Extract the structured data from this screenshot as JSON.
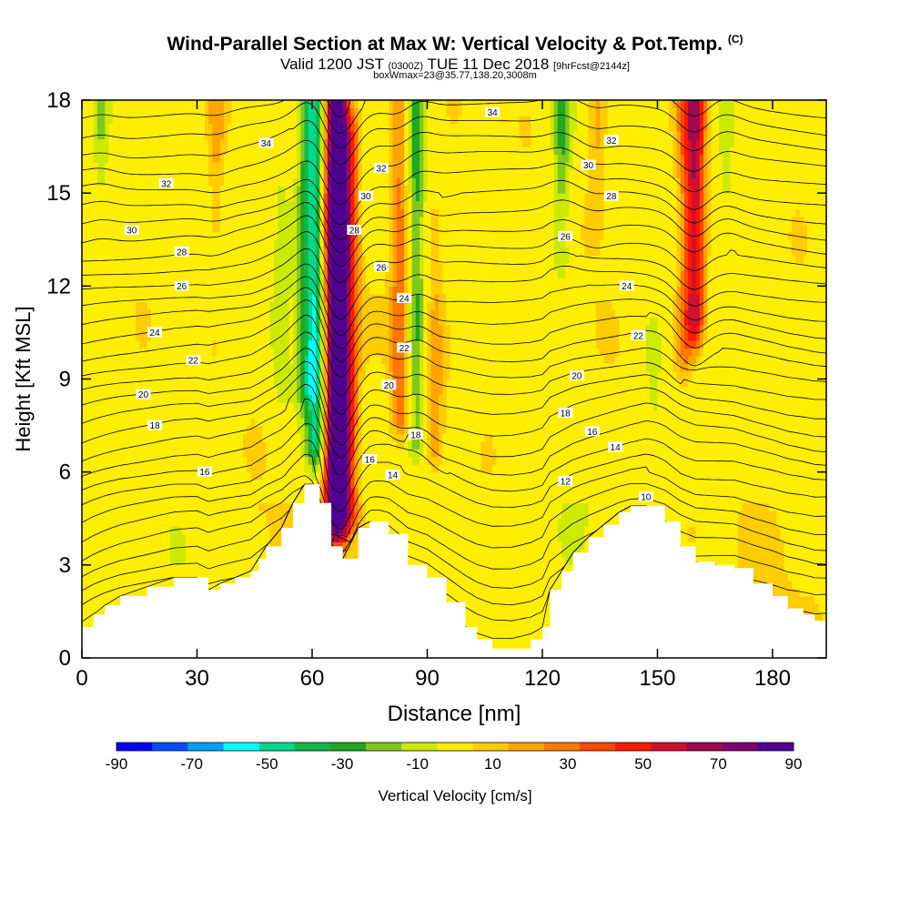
{
  "title": "Wind-Parallel Section at Max W: Vertical Velocity & Pot.Temp.",
  "title_mark": "(C)",
  "subtitle_main": "Valid 1200 JST",
  "subtitle_utc": "(0300Z)",
  "subtitle_date": "TUE 11 Dec 2018",
  "subtitle_fcst": "[9hrFcst@2144z]",
  "subtitle2": "boxWmax=23@35.77,138.20,3008m",
  "chart_data": {
    "type": "heatmap",
    "xlabel": "Distance [nm]",
    "ylabel": "Height [Kft MSL]",
    "xlim": [
      0,
      194
    ],
    "ylim": [
      0,
      18
    ],
    "xticks": [
      "0",
      "30",
      "60",
      "90",
      "120",
      "150",
      "180"
    ],
    "yticks": [
      "0",
      "3",
      "6",
      "9",
      "12",
      "15",
      "18"
    ],
    "colorbar": {
      "label": "Vertical Velocity [cm/s]",
      "tick_labels": [
        "-90",
        "-70",
        "-50",
        "-30",
        "-10",
        "10",
        "30",
        "50",
        "70",
        "90"
      ],
      "colors": [
        "#0000ff",
        "#0050ff",
        "#00a0ff",
        "#00ffff",
        "#00d890",
        "#10b848",
        "#20a820",
        "#80c820",
        "#ccea00",
        "#ffee00",
        "#ffcc00",
        "#ffa500",
        "#ff7800",
        "#ff4800",
        "#ff1800",
        "#d01030",
        "#a00850",
        "#800070",
        "#500090"
      ]
    },
    "terrain_kft": {
      "x": [
        0,
        3,
        6,
        10,
        17,
        24,
        30,
        33,
        36,
        40,
        44,
        46,
        48,
        52,
        55,
        58,
        60,
        62,
        65,
        68,
        72,
        75,
        80,
        85,
        90,
        95,
        100,
        103,
        107,
        112,
        117,
        120,
        122,
        125,
        128,
        132,
        136,
        140,
        143,
        147,
        152,
        156,
        160,
        165,
        170,
        175,
        180,
        184,
        188,
        191,
        194
      ],
      "y": [
        1.0,
        1.4,
        1.7,
        2.0,
        2.3,
        2.6,
        2.6,
        2.2,
        2.4,
        2.6,
        2.8,
        3.2,
        3.6,
        4.2,
        5.0,
        5.6,
        5.6,
        5.0,
        3.6,
        3.2,
        4.2,
        4.4,
        4.0,
        3.0,
        2.6,
        1.8,
        1.0,
        0.6,
        0.3,
        0.3,
        0.6,
        1.0,
        2.2,
        2.8,
        3.4,
        3.9,
        4.3,
        4.7,
        4.9,
        4.9,
        4.4,
        3.6,
        3.1,
        3.0,
        2.9,
        2.4,
        2.0,
        1.6,
        1.4,
        1.2,
        1.2
      ]
    },
    "vertical_velocity_cells": [
      {
        "x": 67,
        "z0": 4.5,
        "z1": 18.0,
        "w": 80
      },
      {
        "x": 65,
        "z0": 5.0,
        "z1": 18.0,
        "w": 55
      },
      {
        "x": 70,
        "z0": 5.0,
        "z1": 17.0,
        "w": 40
      },
      {
        "x": 61,
        "z0": 7.0,
        "z1": 18.0,
        "w": -55
      },
      {
        "x": 58,
        "z0": 9.0,
        "z1": 18.0,
        "w": -30
      },
      {
        "x": 83,
        "z0": 8.0,
        "z1": 18.0,
        "w": 35
      },
      {
        "x": 87,
        "z0": 7.0,
        "z1": 18.0,
        "w": -35
      },
      {
        "x": 92,
        "z0": 7.0,
        "z1": 14.0,
        "w": 20
      },
      {
        "x": 125,
        "z0": 13.0,
        "z1": 18.0,
        "w": -30
      },
      {
        "x": 134,
        "z0": 14.0,
        "z1": 18.0,
        "w": 20
      },
      {
        "x": 149,
        "z0": 7.0,
        "z1": 10.0,
        "w": -20
      },
      {
        "x": 160,
        "z0": 11.0,
        "z1": 18.0,
        "w": 60
      },
      {
        "x": 157,
        "z0": 10.0,
        "z1": 18.0,
        "w": 25
      },
      {
        "x": 168,
        "z0": 14.0,
        "z1": 18.0,
        "w": -20
      },
      {
        "x": 5,
        "z0": 14.0,
        "z1": 18.0,
        "w": -20
      },
      {
        "x": 52,
        "z0": 9.0,
        "z1": 16.0,
        "w": -15
      },
      {
        "x": 35,
        "z0": 14.0,
        "z1": 18.0,
        "w": 20
      }
    ],
    "isentrope_labels": [
      {
        "text": "34",
        "x": 48,
        "y": 16.6
      },
      {
        "text": "32",
        "x": 22,
        "y": 15.3
      },
      {
        "text": "30",
        "x": 13,
        "y": 13.8
      },
      {
        "text": "28",
        "x": 26,
        "y": 13.1
      },
      {
        "text": "26",
        "x": 26,
        "y": 12.0
      },
      {
        "text": "24",
        "x": 19,
        "y": 10.5
      },
      {
        "text": "22",
        "x": 29,
        "y": 9.6
      },
      {
        "text": "20",
        "x": 16,
        "y": 8.5
      },
      {
        "text": "18",
        "x": 19,
        "y": 7.5
      },
      {
        "text": "16",
        "x": 32,
        "y": 6.0
      },
      {
        "text": "34",
        "x": 107,
        "y": 17.6
      },
      {
        "text": "32",
        "x": 78,
        "y": 15.8
      },
      {
        "text": "30",
        "x": 74,
        "y": 14.9
      },
      {
        "text": "28",
        "x": 71,
        "y": 13.8
      },
      {
        "text": "26",
        "x": 78,
        "y": 12.6
      },
      {
        "text": "24",
        "x": 84,
        "y": 11.6
      },
      {
        "text": "22",
        "x": 84,
        "y": 10.0
      },
      {
        "text": "20",
        "x": 80,
        "y": 8.8
      },
      {
        "text": "18",
        "x": 87,
        "y": 7.2
      },
      {
        "text": "16",
        "x": 75,
        "y": 6.4
      },
      {
        "text": "14",
        "x": 81,
        "y": 5.9
      },
      {
        "text": "32",
        "x": 138,
        "y": 16.7
      },
      {
        "text": "30",
        "x": 132,
        "y": 15.9
      },
      {
        "text": "28",
        "x": 138,
        "y": 14.9
      },
      {
        "text": "26",
        "x": 126,
        "y": 13.6
      },
      {
        "text": "24",
        "x": 142,
        "y": 12.0
      },
      {
        "text": "22",
        "x": 145,
        "y": 10.4
      },
      {
        "text": "20",
        "x": 129,
        "y": 9.1
      },
      {
        "text": "18",
        "x": 126,
        "y": 7.9
      },
      {
        "text": "16",
        "x": 133,
        "y": 7.3
      },
      {
        "text": "14",
        "x": 139,
        "y": 6.8
      },
      {
        "text": "12",
        "x": 126,
        "y": 5.7
      },
      {
        "text": "10",
        "x": 147,
        "y": 5.2
      }
    ]
  }
}
